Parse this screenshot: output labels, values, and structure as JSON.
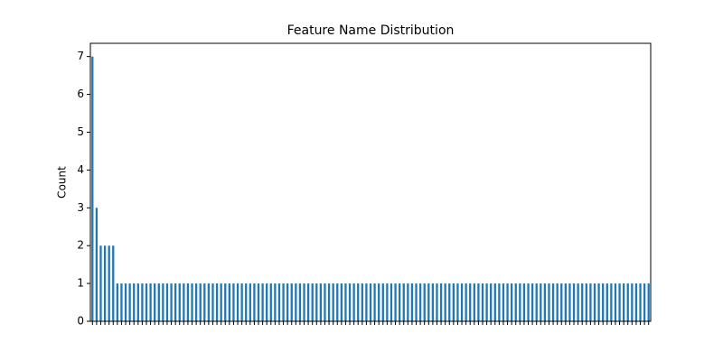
{
  "chart_data": {
    "type": "bar",
    "title": "Feature Name Distribution",
    "y_label": "Count",
    "categories": [
      null,
      null,
      null,
      null,
      null,
      null,
      null,
      null,
      null,
      null,
      null,
      null,
      null,
      null,
      null,
      null,
      null,
      null,
      null,
      null,
      null,
      null,
      null,
      null,
      null,
      null,
      null,
      null,
      null,
      null,
      null,
      null,
      null,
      null,
      null,
      null,
      null,
      null,
      null,
      null,
      null,
      null,
      null,
      null,
      null,
      null,
      null,
      null,
      null,
      null,
      null,
      null,
      null,
      null,
      null,
      null,
      null,
      null,
      null,
      null,
      null,
      null,
      null,
      null,
      null,
      null,
      null,
      null,
      null,
      null,
      null,
      null,
      null,
      null,
      null,
      null,
      null,
      null,
      null,
      null,
      null,
      null,
      null,
      null,
      null,
      null,
      null,
      null,
      null,
      null,
      null,
      null,
      null,
      null,
      null,
      null,
      null,
      null,
      null,
      null,
      null,
      null,
      null,
      null,
      null,
      null,
      null,
      null,
      null,
      null,
      null,
      null,
      null,
      null,
      null,
      null,
      null,
      null,
      null,
      null,
      null,
      null,
      null,
      null,
      null,
      null,
      null,
      null,
      null,
      null,
      null,
      null,
      null,
      null,
      null
    ],
    "values": [
      7,
      3,
      2,
      2,
      2,
      2,
      1,
      1,
      1,
      1,
      1,
      1,
      1,
      1,
      1,
      1,
      1,
      1,
      1,
      1,
      1,
      1,
      1,
      1,
      1,
      1,
      1,
      1,
      1,
      1,
      1,
      1,
      1,
      1,
      1,
      1,
      1,
      1,
      1,
      1,
      1,
      1,
      1,
      1,
      1,
      1,
      1,
      1,
      1,
      1,
      1,
      1,
      1,
      1,
      1,
      1,
      1,
      1,
      1,
      1,
      1,
      1,
      1,
      1,
      1,
      1,
      1,
      1,
      1,
      1,
      1,
      1,
      1,
      1,
      1,
      1,
      1,
      1,
      1,
      1,
      1,
      1,
      1,
      1,
      1,
      1,
      1,
      1,
      1,
      1,
      1,
      1,
      1,
      1,
      1,
      1,
      1,
      1,
      1,
      1,
      1,
      1,
      1,
      1,
      1,
      1,
      1,
      1,
      1,
      1,
      1,
      1,
      1,
      1,
      1,
      1,
      1,
      1,
      1,
      1,
      1,
      1,
      1,
      1,
      1,
      1,
      1,
      1,
      1,
      1,
      1,
      1,
      1,
      1,
      1
    ],
    "color": "#1f77b4",
    "ylim": [
      0,
      7.35
    ],
    "yticks": [
      0,
      1,
      2,
      3,
      4,
      5,
      6,
      7
    ],
    "grid": false
  }
}
